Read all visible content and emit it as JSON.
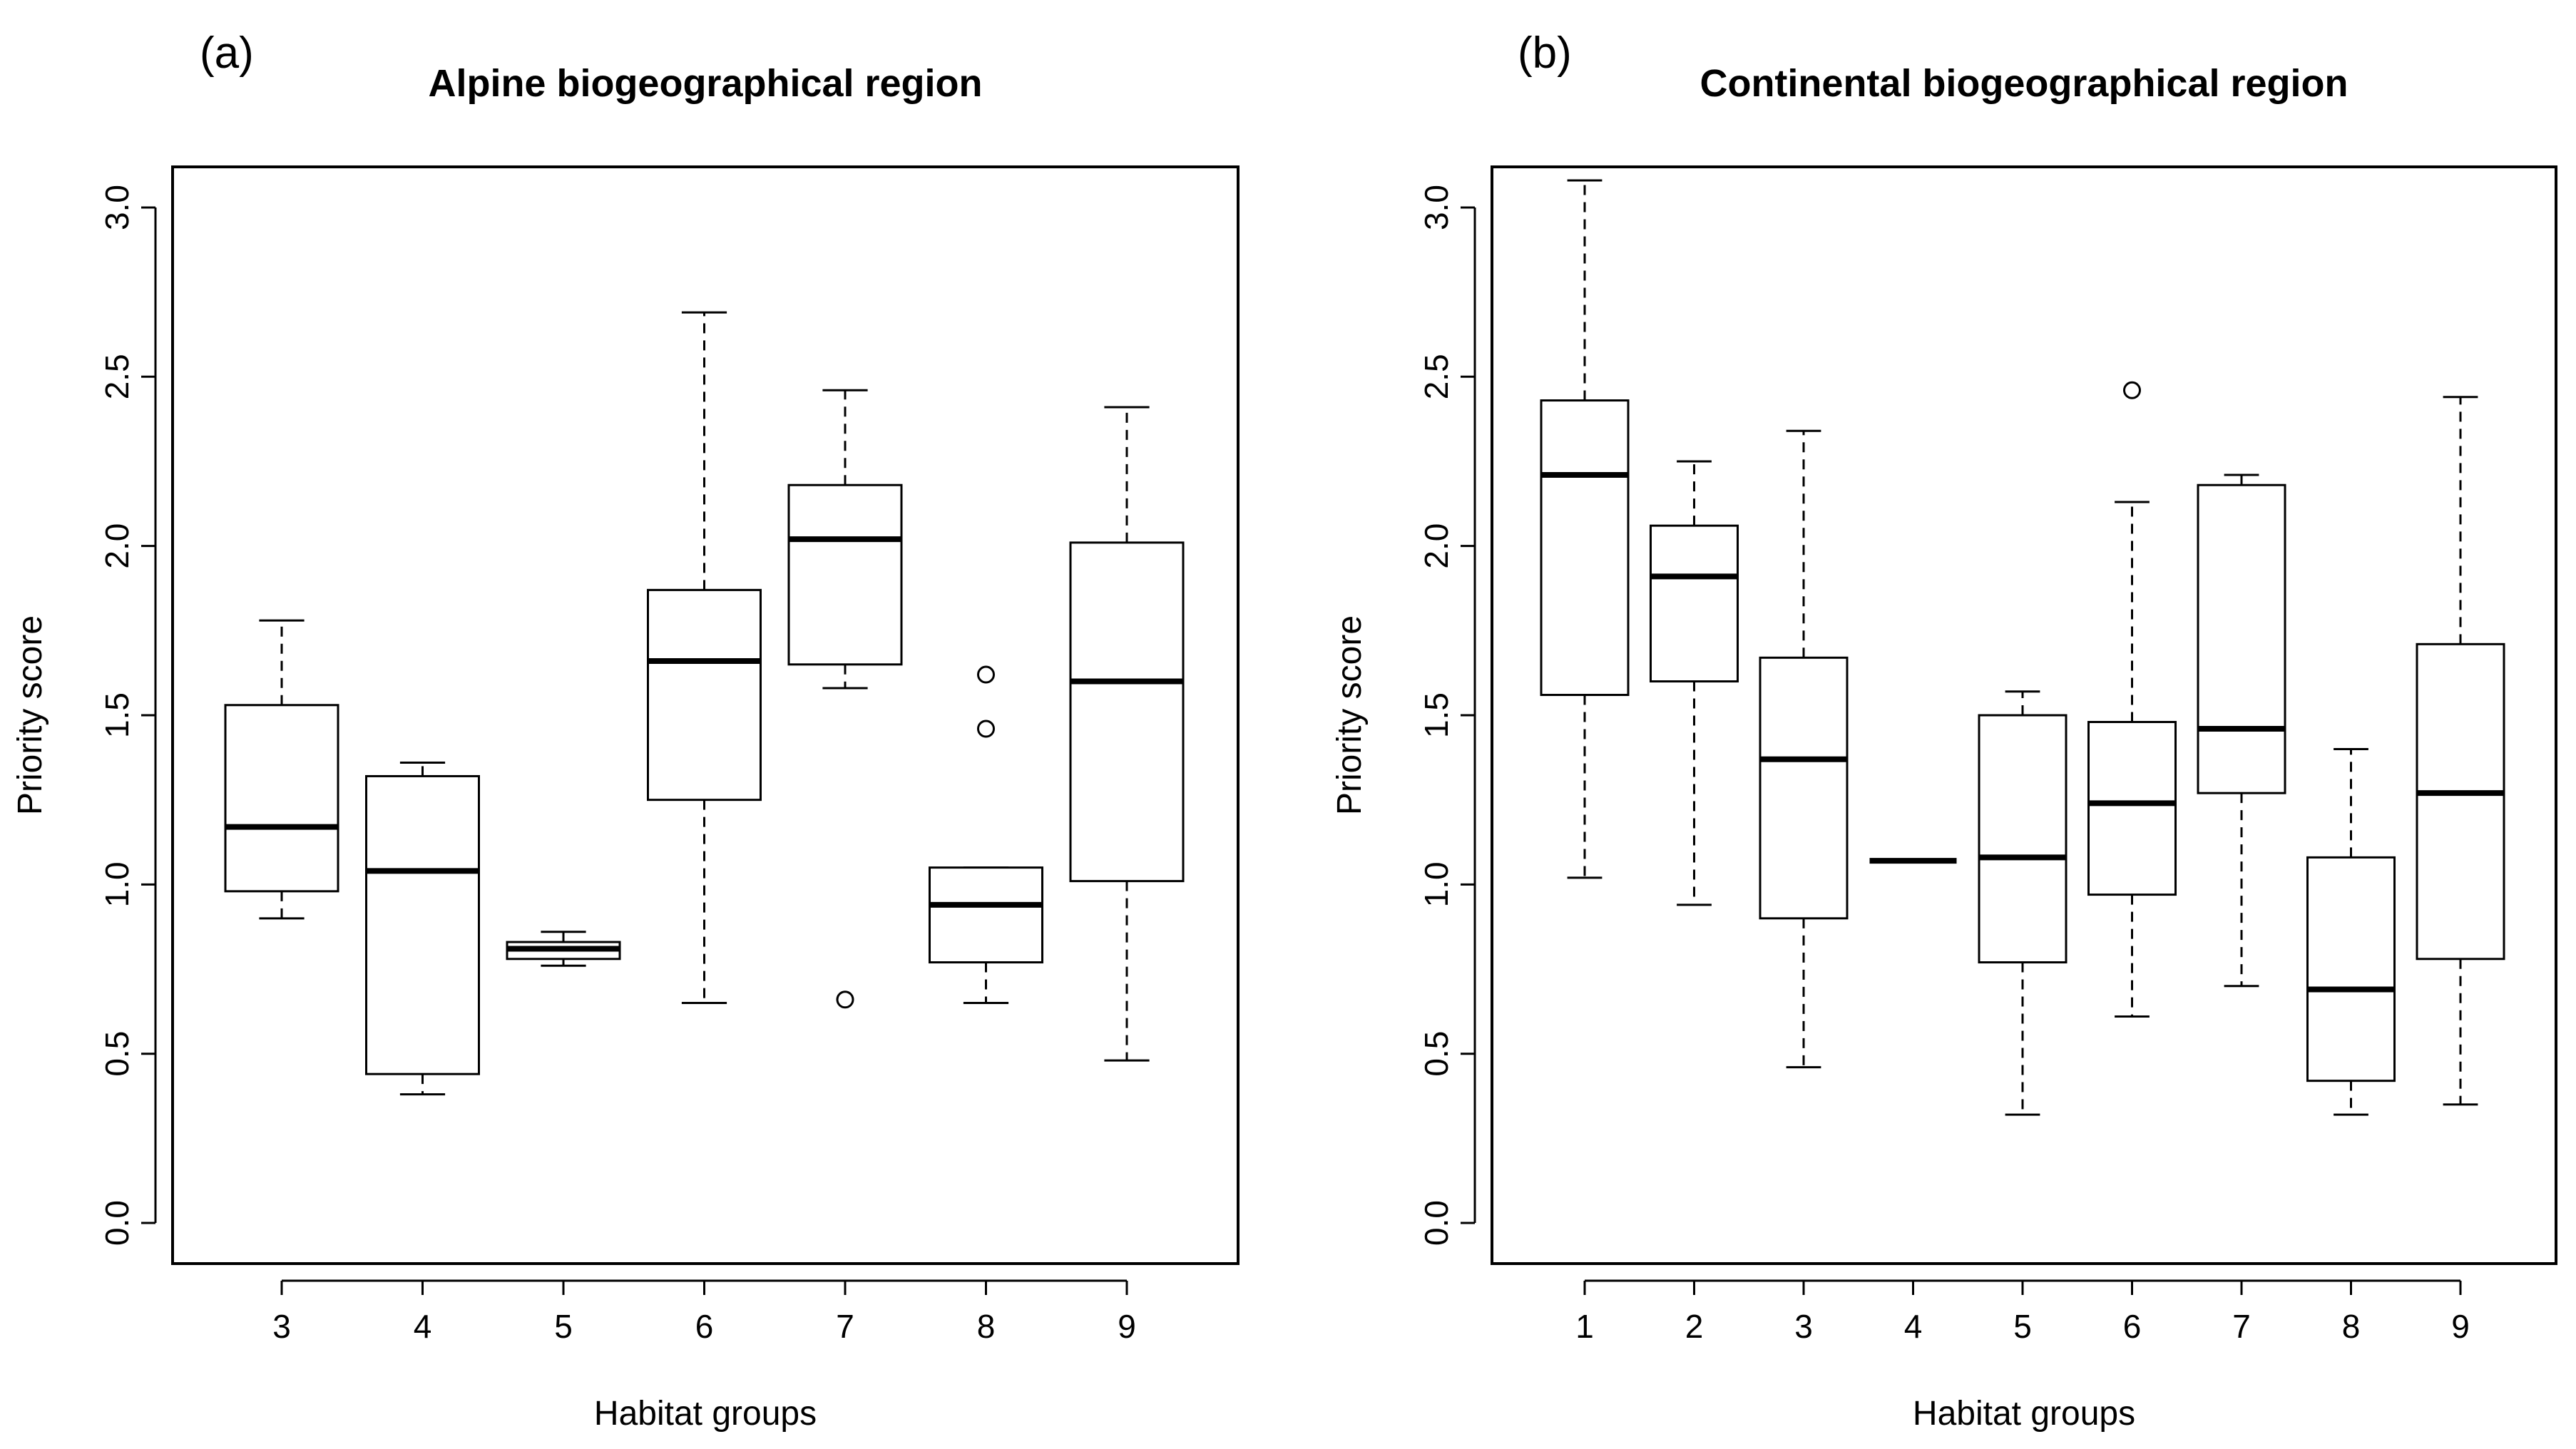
{
  "chart_data": [
    {
      "panel_label": "(a)",
      "type": "boxplot",
      "title": "Alpine biogeographical region",
      "xlabel": "Habitat groups",
      "ylabel": "Priority score",
      "ylim": [
        -0.12,
        3.12
      ],
      "yticks": [
        "0.0",
        "0.5",
        "1.0",
        "1.5",
        "2.0",
        "2.5",
        "3.0"
      ],
      "categories": [
        "3",
        "4",
        "5",
        "6",
        "7",
        "8",
        "9"
      ],
      "boxes": [
        {
          "group": "3",
          "min": 0.9,
          "q1": 0.98,
          "median": 1.17,
          "q3": 1.53,
          "max": 1.78,
          "outliers": []
        },
        {
          "group": "4",
          "min": 0.38,
          "q1": 0.44,
          "median": 1.04,
          "q3": 1.32,
          "max": 1.36,
          "outliers": []
        },
        {
          "group": "5",
          "min": 0.76,
          "q1": 0.78,
          "median": 0.81,
          "q3": 0.83,
          "max": 0.86,
          "outliers": []
        },
        {
          "group": "6",
          "min": 0.65,
          "q1": 1.25,
          "median": 1.66,
          "q3": 1.87,
          "max": 2.69,
          "outliers": []
        },
        {
          "group": "7",
          "min": 1.58,
          "q1": 1.65,
          "median": 2.02,
          "q3": 2.18,
          "max": 2.46,
          "outliers": [
            0.66
          ]
        },
        {
          "group": "8",
          "min": 0.65,
          "q1": 0.77,
          "median": 0.94,
          "q3": 1.05,
          "max": 1.05,
          "outliers": [
            1.46,
            1.62
          ]
        },
        {
          "group": "9",
          "min": 0.48,
          "q1": 1.01,
          "median": 1.6,
          "q3": 2.01,
          "max": 2.41,
          "outliers": []
        }
      ]
    },
    {
      "panel_label": "(b)",
      "type": "boxplot",
      "title": "Continental biogeographical region",
      "xlabel": "Habitat groups",
      "ylabel": "Priority score",
      "ylim": [
        -0.12,
        3.12
      ],
      "yticks": [
        "0.0",
        "0.5",
        "1.0",
        "1.5",
        "2.0",
        "2.5",
        "3.0"
      ],
      "categories": [
        "1",
        "2",
        "3",
        "4",
        "5",
        "6",
        "7",
        "8",
        "9"
      ],
      "boxes": [
        {
          "group": "1",
          "min": 1.02,
          "q1": 1.56,
          "median": 2.21,
          "q3": 2.43,
          "max": 3.08,
          "outliers": []
        },
        {
          "group": "2",
          "min": 0.94,
          "q1": 1.6,
          "median": 1.91,
          "q3": 2.06,
          "max": 2.25,
          "outliers": []
        },
        {
          "group": "3",
          "min": 0.46,
          "q1": 0.9,
          "median": 1.37,
          "q3": 1.67,
          "max": 2.34,
          "outliers": []
        },
        {
          "group": "4",
          "min": 1.07,
          "q1": 1.07,
          "median": 1.07,
          "q3": 1.07,
          "max": 1.07,
          "outliers": []
        },
        {
          "group": "5",
          "min": 0.32,
          "q1": 0.77,
          "median": 1.08,
          "q3": 1.5,
          "max": 1.57,
          "outliers": []
        },
        {
          "group": "6",
          "min": 0.61,
          "q1": 0.97,
          "median": 1.24,
          "q3": 1.48,
          "max": 2.13,
          "outliers": [
            2.46
          ]
        },
        {
          "group": "7",
          "min": 0.7,
          "q1": 1.27,
          "median": 1.46,
          "q3": 2.18,
          "max": 2.21,
          "outliers": []
        },
        {
          "group": "8",
          "min": 0.32,
          "q1": 0.42,
          "median": 0.69,
          "q3": 1.08,
          "max": 1.4,
          "outliers": []
        },
        {
          "group": "9",
          "min": 0.35,
          "q1": 0.78,
          "median": 1.27,
          "q3": 1.71,
          "max": 2.44,
          "outliers": []
        }
      ]
    }
  ]
}
